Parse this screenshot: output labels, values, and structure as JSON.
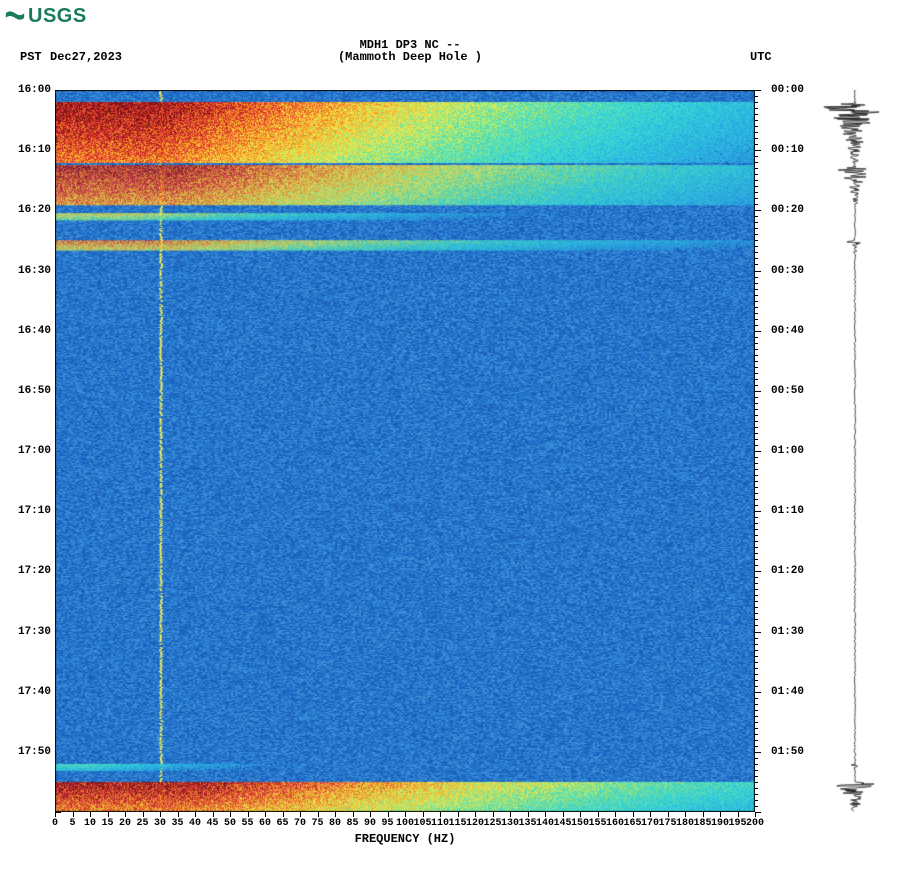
{
  "logo_text": "USGS",
  "header": {
    "tz_left": "PST",
    "date": "Dec27,2023",
    "title_line1": "MDH1 DP3 NC --",
    "title_line2": "(Mammoth Deep Hole )",
    "tz_right": "UTC"
  },
  "spectrogram": {
    "type": "spectrogram",
    "xlabel": "FREQUENCY (HZ)",
    "xlim": [
      0,
      200
    ],
    "xtick_step": 5,
    "ylim_minutes": [
      0,
      120
    ],
    "left_ticks": [
      "16:00",
      "16:10",
      "16:20",
      "16:30",
      "16:40",
      "16:50",
      "17:00",
      "17:10",
      "17:20",
      "17:30",
      "17:40",
      "17:50"
    ],
    "right_ticks": [
      "00:00",
      "00:10",
      "00:20",
      "00:30",
      "00:40",
      "00:50",
      "01:00",
      "01:10",
      "01:20",
      "01:30",
      "01:40",
      "01:50"
    ],
    "minor_tick_minutes": 1,
    "background_color": "#2a7dd1",
    "noise_colors": [
      "#1c6cc8",
      "#2a7dd1",
      "#3a8ed8",
      "#1a5fb8"
    ],
    "colormap": [
      "#7a0f0f",
      "#a31515",
      "#c72020",
      "#e03030",
      "#f05030",
      "#fa7a20",
      "#ffa020",
      "#ffd030",
      "#f7f050",
      "#c0f060",
      "#70e8a0",
      "#40e0d0",
      "#30c8e0",
      "#2aa0e0",
      "#2a7dd1",
      "#1c6cc8"
    ],
    "events": [
      {
        "start_min": 2.0,
        "end_min": 12.0,
        "decay_hz_start": 200,
        "decay_hz_end": 200,
        "intensity": 1.0,
        "core_hz": 30
      },
      {
        "start_min": 12.5,
        "end_min": 19.0,
        "decay_hz_start": 200,
        "decay_hz_end": 100,
        "intensity": 0.9,
        "core_hz": 35
      },
      {
        "start_min": 20.5,
        "end_min": 21.5,
        "decay_hz_start": 120,
        "decay_hz_end": 60,
        "intensity": 0.5,
        "core_hz": 20
      },
      {
        "start_min": 25.0,
        "end_min": 26.5,
        "decay_hz_start": 200,
        "decay_hz_end": 80,
        "intensity": 0.7,
        "core_hz": 30
      },
      {
        "start_min": 115.0,
        "end_min": 120.0,
        "decay_hz_start": 200,
        "decay_hz_end": 130,
        "intensity": 0.95,
        "core_hz": 40
      },
      {
        "start_min": 112.0,
        "end_min": 113.0,
        "decay_hz_start": 60,
        "decay_hz_end": 40,
        "intensity": 0.3,
        "core_hz": 10
      }
    ],
    "vertical_line_hz": 30,
    "vertical_line_color": "#f7f050",
    "label_fontsize": 11,
    "label_fontweight": "bold"
  },
  "seismogram": {
    "baseline_x": 40,
    "max_amplitude": 38,
    "color": "#000000",
    "events": [
      {
        "start_min": 2.0,
        "end_min": 12.0,
        "amp": 1.0
      },
      {
        "start_min": 12.5,
        "end_min": 19.0,
        "amp": 0.6
      },
      {
        "start_min": 25.0,
        "end_min": 27.0,
        "amp": 0.35
      },
      {
        "start_min": 112.0,
        "end_min": 113.0,
        "amp": 0.15
      },
      {
        "start_min": 115.0,
        "end_min": 120.0,
        "amp": 0.75
      }
    ]
  }
}
